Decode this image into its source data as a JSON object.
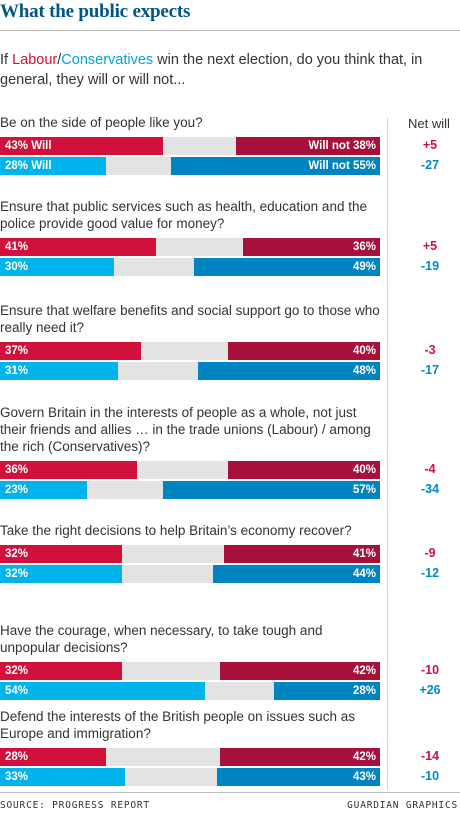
{
  "title": "What the public expects",
  "intro": {
    "prefix": "If ",
    "labour": "Labour",
    "slash": "/",
    "conservatives": "Conservatives",
    "suffix": " win the next election, do you think that, in general, they will or  will not..."
  },
  "net_header": "Net will",
  "colors": {
    "labour_will": "#d1113c",
    "labour_will_not": "#a6103a",
    "conservative_will": "#00b3ea",
    "conservative_will_not": "#0084c1",
    "neutral": "#e3e3e3",
    "title": "#005689"
  },
  "chart_data": {
    "type": "bar",
    "stacked": "diverging",
    "series": [
      {
        "name": "Labour"
      },
      {
        "name": "Conservatives"
      }
    ],
    "questions": [
      {
        "text": "Be on the side of people like you?",
        "labour": {
          "will": 43,
          "will_not": 38,
          "will_label": "43% Will",
          "will_not_label": "Will not 38%",
          "net": "+5"
        },
        "conservatives": {
          "will": 28,
          "will_not": 55,
          "will_label": "28% Will",
          "will_not_label": "Will not 55%",
          "net": "-27"
        }
      },
      {
        "text": "Ensure that public services such as health, education and the police provide good value for money?",
        "labour": {
          "will": 41,
          "will_not": 36,
          "will_label": "41%",
          "will_not_label": "36%",
          "net": "+5"
        },
        "conservatives": {
          "will": 30,
          "will_not": 49,
          "will_label": "30%",
          "will_not_label": "49%",
          "net": "-19"
        }
      },
      {
        "text": "Ensure that welfare benefits and social support go to those who really need it?",
        "labour": {
          "will": 37,
          "will_not": 40,
          "will_label": "37%",
          "will_not_label": "40%",
          "net": "-3"
        },
        "conservatives": {
          "will": 31,
          "will_not": 48,
          "will_label": "31%",
          "will_not_label": "48%",
          "net": "-17"
        }
      },
      {
        "text": "Govern Britain in the interests of people as a whole, not just their friends and allies … in the trade unions (Labour) / among the rich (Conservatives)?",
        "labour": {
          "will": 36,
          "will_not": 40,
          "will_label": "36%",
          "will_not_label": "40%",
          "net": "-4"
        },
        "conservatives": {
          "will": 23,
          "will_not": 57,
          "will_label": "23%",
          "will_not_label": "57%",
          "net": "-34"
        }
      },
      {
        "text": "Take the right decisions to help Britain’s economy recover?",
        "labour": {
          "will": 32,
          "will_not": 41,
          "will_label": "32%",
          "will_not_label": "41%",
          "net": "-9"
        },
        "conservatives": {
          "will": 32,
          "will_not": 44,
          "will_label": "32%",
          "will_not_label": "44%",
          "net": "-12"
        }
      },
      {
        "text": "Have the courage, when necessary, to take tough and unpopular decisions?",
        "labour": {
          "will": 32,
          "will_not": 42,
          "will_label": "32%",
          "will_not_label": "42%",
          "net": "-10"
        },
        "conservatives": {
          "will": 54,
          "will_not": 28,
          "will_label": "54%",
          "will_not_label": "28%",
          "net": "+26"
        }
      },
      {
        "text": "Defend the interests of the British people on issues such as Europe and immigration?",
        "labour": {
          "will": 28,
          "will_not": 42,
          "will_label": "28%",
          "will_not_label": "42%",
          "net": "-14"
        },
        "conservatives": {
          "will": 33,
          "will_not": 43,
          "will_label": "33%",
          "will_not_label": "43%",
          "net": "-10"
        }
      }
    ]
  },
  "footer": {
    "source": "SOURCE: PROGRESS REPORT",
    "credit": "GUARDIAN GRAPHICS"
  }
}
